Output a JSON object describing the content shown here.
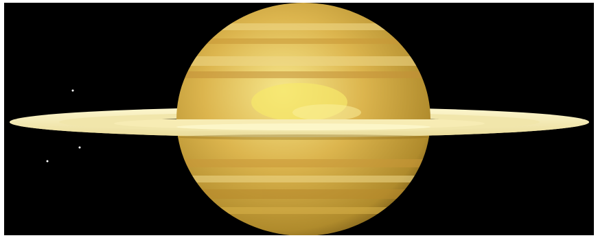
{
  "scene": {
    "subject": "ringed-planet",
    "background_color": "#000000",
    "frame_color": "#ffffff",
    "planet_colors": {
      "highlight": "#f4e27a",
      "mid": "#d9b24a",
      "shadow": "#8a6a1e",
      "band_light": "#efd98a",
      "band_dark": "#c99838"
    },
    "ring_colors": {
      "outer": "#fbf3c0",
      "inner": "#efe3a6",
      "shadow": "#1a1508"
    },
    "star_color": "#ffffff",
    "star_count": 3
  }
}
